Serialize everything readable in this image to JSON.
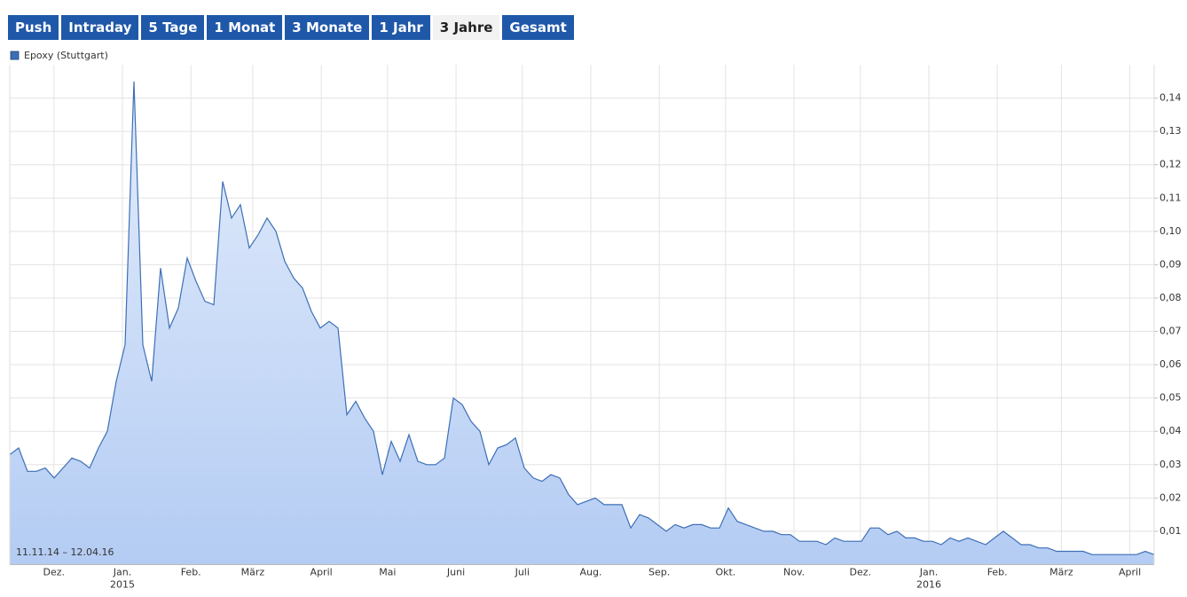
{
  "tabs": [
    {
      "label": "Push"
    },
    {
      "label": "Intraday"
    },
    {
      "label": "5 Tage"
    },
    {
      "label": "1 Monat"
    },
    {
      "label": "3 Monate"
    },
    {
      "label": "1 Jahr"
    },
    {
      "label": "3 Jahre",
      "selected": true
    },
    {
      "label": "Gesamt"
    }
  ],
  "chart_data": {
    "type": "area",
    "range_label": "11.11.14 – 12.04.16",
    "xlim": [
      "2014-11-11",
      "2016-04-12"
    ],
    "xticks": [
      {
        "value": "2014-12",
        "label": "Dez."
      },
      {
        "value": "2015-01",
        "label": "Jan.",
        "year": "2015"
      },
      {
        "value": "2015-02",
        "label": "Feb."
      },
      {
        "value": "2015-03",
        "label": "März"
      },
      {
        "value": "2015-04",
        "label": "April"
      },
      {
        "value": "2015-05",
        "label": "Mai"
      },
      {
        "value": "2015-06",
        "label": "Juni"
      },
      {
        "value": "2015-07",
        "label": "Juli"
      },
      {
        "value": "2015-08",
        "label": "Aug."
      },
      {
        "value": "2015-09",
        "label": "Sep."
      },
      {
        "value": "2015-10",
        "label": "Okt."
      },
      {
        "value": "2015-11",
        "label": "Nov."
      },
      {
        "value": "2015-12",
        "label": "Dez."
      },
      {
        "value": "2016-01",
        "label": "Jan.",
        "year": "2016"
      },
      {
        "value": "2016-02",
        "label": "Feb."
      },
      {
        "value": "2016-03",
        "label": "März"
      },
      {
        "value": "2016-04",
        "label": "April"
      }
    ],
    "ylim": [
      0,
      0.15
    ],
    "yticks": [
      {
        "value": 0.01,
        "label": "0,01"
      },
      {
        "value": 0.02,
        "label": "0,02"
      },
      {
        "value": 0.03,
        "label": "0,03"
      },
      {
        "value": 0.04,
        "label": "0,04"
      },
      {
        "value": 0.05,
        "label": "0,05"
      },
      {
        "value": 0.06,
        "label": "0,06"
      },
      {
        "value": 0.07,
        "label": "0,07"
      },
      {
        "value": 0.08,
        "label": "0,08"
      },
      {
        "value": 0.09,
        "label": "0,09"
      },
      {
        "value": 0.1,
        "label": "0,10"
      },
      {
        "value": 0.11,
        "label": "0,11"
      },
      {
        "value": 0.12,
        "label": "0,12"
      },
      {
        "value": 0.13,
        "label": "0,13"
      },
      {
        "value": 0.14,
        "label": "0,14"
      }
    ],
    "grid": true,
    "series": [
      {
        "name": "Epoxy (Stuttgart)",
        "color": "#3d6fb6",
        "values": [
          0.033,
          0.035,
          0.028,
          0.028,
          0.029,
          0.026,
          0.029,
          0.032,
          0.031,
          0.029,
          0.035,
          0.04,
          0.055,
          0.066,
          0.145,
          0.066,
          0.055,
          0.089,
          0.071,
          0.077,
          0.092,
          0.085,
          0.079,
          0.078,
          0.115,
          0.104,
          0.108,
          0.095,
          0.099,
          0.104,
          0.1,
          0.091,
          0.086,
          0.083,
          0.076,
          0.071,
          0.073,
          0.071,
          0.045,
          0.049,
          0.044,
          0.04,
          0.027,
          0.037,
          0.031,
          0.039,
          0.031,
          0.03,
          0.03,
          0.032,
          0.05,
          0.048,
          0.043,
          0.04,
          0.03,
          0.035,
          0.036,
          0.038,
          0.029,
          0.026,
          0.025,
          0.027,
          0.026,
          0.021,
          0.018,
          0.019,
          0.02,
          0.018,
          0.018,
          0.018,
          0.011,
          0.015,
          0.014,
          0.012,
          0.01,
          0.012,
          0.011,
          0.012,
          0.012,
          0.011,
          0.011,
          0.017,
          0.013,
          0.012,
          0.011,
          0.01,
          0.01,
          0.009,
          0.009,
          0.007,
          0.007,
          0.007,
          0.006,
          0.008,
          0.007,
          0.007,
          0.007,
          0.011,
          0.011,
          0.009,
          0.01,
          0.008,
          0.008,
          0.007,
          0.007,
          0.006,
          0.008,
          0.007,
          0.008,
          0.007,
          0.006,
          0.008,
          0.01,
          0.008,
          0.006,
          0.006,
          0.005,
          0.005,
          0.004,
          0.004,
          0.004,
          0.004,
          0.003,
          0.003,
          0.003,
          0.003,
          0.003,
          0.003,
          0.004,
          0.003
        ]
      }
    ]
  }
}
